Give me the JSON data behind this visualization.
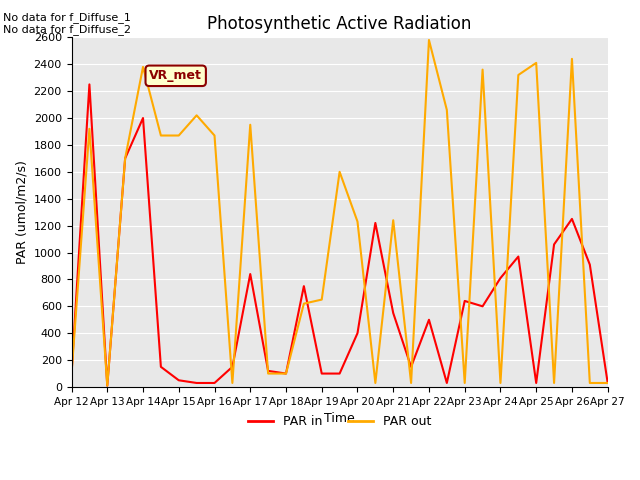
{
  "title": "Photosynthetic Active Radiation",
  "xlabel": "Time",
  "ylabel": "PAR (umol/m2/s)",
  "text_top_left": "No data for f_Diffuse_1\nNo data for f_Diffuse_2",
  "legend_box_label": "VR_met",
  "background_color": "#e8e8e8",
  "ylim": [
    0,
    2600
  ],
  "yticks": [
    0,
    200,
    400,
    600,
    800,
    1000,
    1200,
    1400,
    1600,
    1800,
    2000,
    2200,
    2400,
    2600
  ],
  "xtick_labels": [
    "Apr 12",
    "Apr 13",
    "Apr 14",
    "Apr 15",
    "Apr 16",
    "Apr 17",
    "Apr 18",
    "Apr 19",
    "Apr 20",
    "Apr 21",
    "Apr 22",
    "Apr 23",
    "Apr 24",
    "Apr 25",
    "Apr 26",
    "Apr 27"
  ],
  "par_in_color": "#ff0000",
  "par_out_color": "#ffaa00",
  "par_in_x": [
    0.0,
    0.5,
    1.0,
    1.5,
    2.0,
    2.5,
    3.0,
    3.5,
    4.0,
    4.5,
    5.0,
    5.5,
    6.0,
    6.5,
    7.0,
    7.5,
    8.0,
    8.5,
    9.0,
    9.5,
    10.0,
    10.5,
    11.0,
    11.5,
    12.0,
    12.5,
    13.0,
    13.5,
    14.0,
    14.5,
    15.0
  ],
  "par_in_y": [
    100,
    2250,
    10,
    1700,
    2000,
    150,
    50,
    30,
    30,
    150,
    840,
    120,
    100,
    750,
    100,
    100,
    400,
    1220,
    550,
    150,
    500,
    30,
    640,
    600,
    810,
    970,
    30,
    1060,
    1250,
    910,
    30
  ],
  "par_out_x": [
    0.0,
    0.5,
    1.0,
    1.5,
    2.0,
    2.5,
    3.0,
    3.5,
    4.0,
    4.5,
    5.0,
    5.5,
    6.0,
    6.5,
    7.0,
    7.5,
    8.0,
    8.5,
    9.0,
    9.5,
    10.0,
    10.5,
    11.0,
    11.5,
    12.0,
    12.5,
    13.0,
    13.5,
    14.0,
    14.5,
    15.0
  ],
  "par_out_y": [
    100,
    1920,
    10,
    1700,
    2380,
    1870,
    1870,
    2020,
    1870,
    30,
    1950,
    100,
    100,
    620,
    650,
    1600,
    1230,
    30,
    1240,
    30,
    2580,
    2060,
    30,
    2360,
    30,
    2320,
    2410,
    30,
    2440,
    30,
    30
  ],
  "line_width": 1.5
}
